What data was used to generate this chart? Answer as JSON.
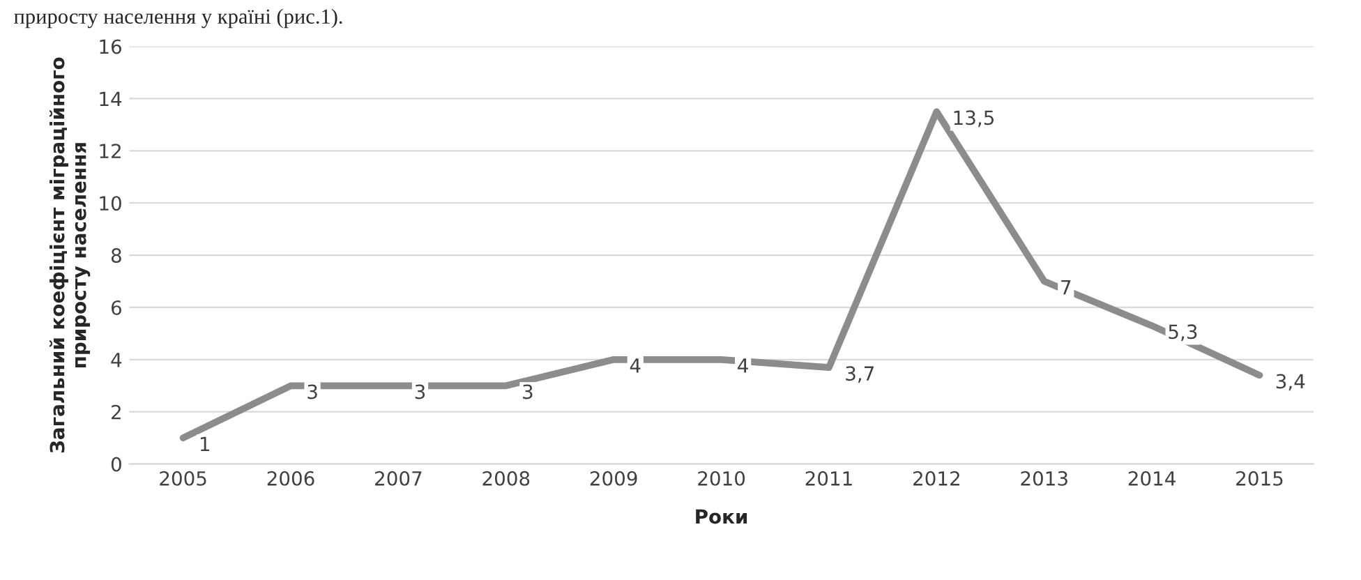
{
  "chart_data": {
    "type": "line",
    "categories": [
      "2005",
      "2006",
      "2007",
      "2008",
      "2009",
      "2010",
      "2011",
      "2012",
      "2013",
      "2014",
      "2015"
    ],
    "series": [
      {
        "color": "#8c8c8c",
        "values": [
          1,
          3,
          3,
          3,
          4,
          4,
          3.7,
          13.5,
          7,
          5.3,
          3.4
        ],
        "value_labels": [
          "1",
          "3",
          "3",
          "3",
          "4",
          "4",
          "3,7",
          "13,5",
          "7",
          "5,3",
          "3,4"
        ]
      }
    ],
    "xlabel": "Роки",
    "ylabel": "Загальний коефіцієнт міграційного\nприросту населення",
    "ylim": [
      0,
      16
    ],
    "yticks": [
      0,
      2,
      4,
      6,
      8,
      10,
      12,
      14,
      16
    ],
    "grid": "y",
    "marker": "none",
    "line_style": "solid",
    "legend": false,
    "annotations": [
      "приросту населення у країні (рис.1)."
    ]
  }
}
